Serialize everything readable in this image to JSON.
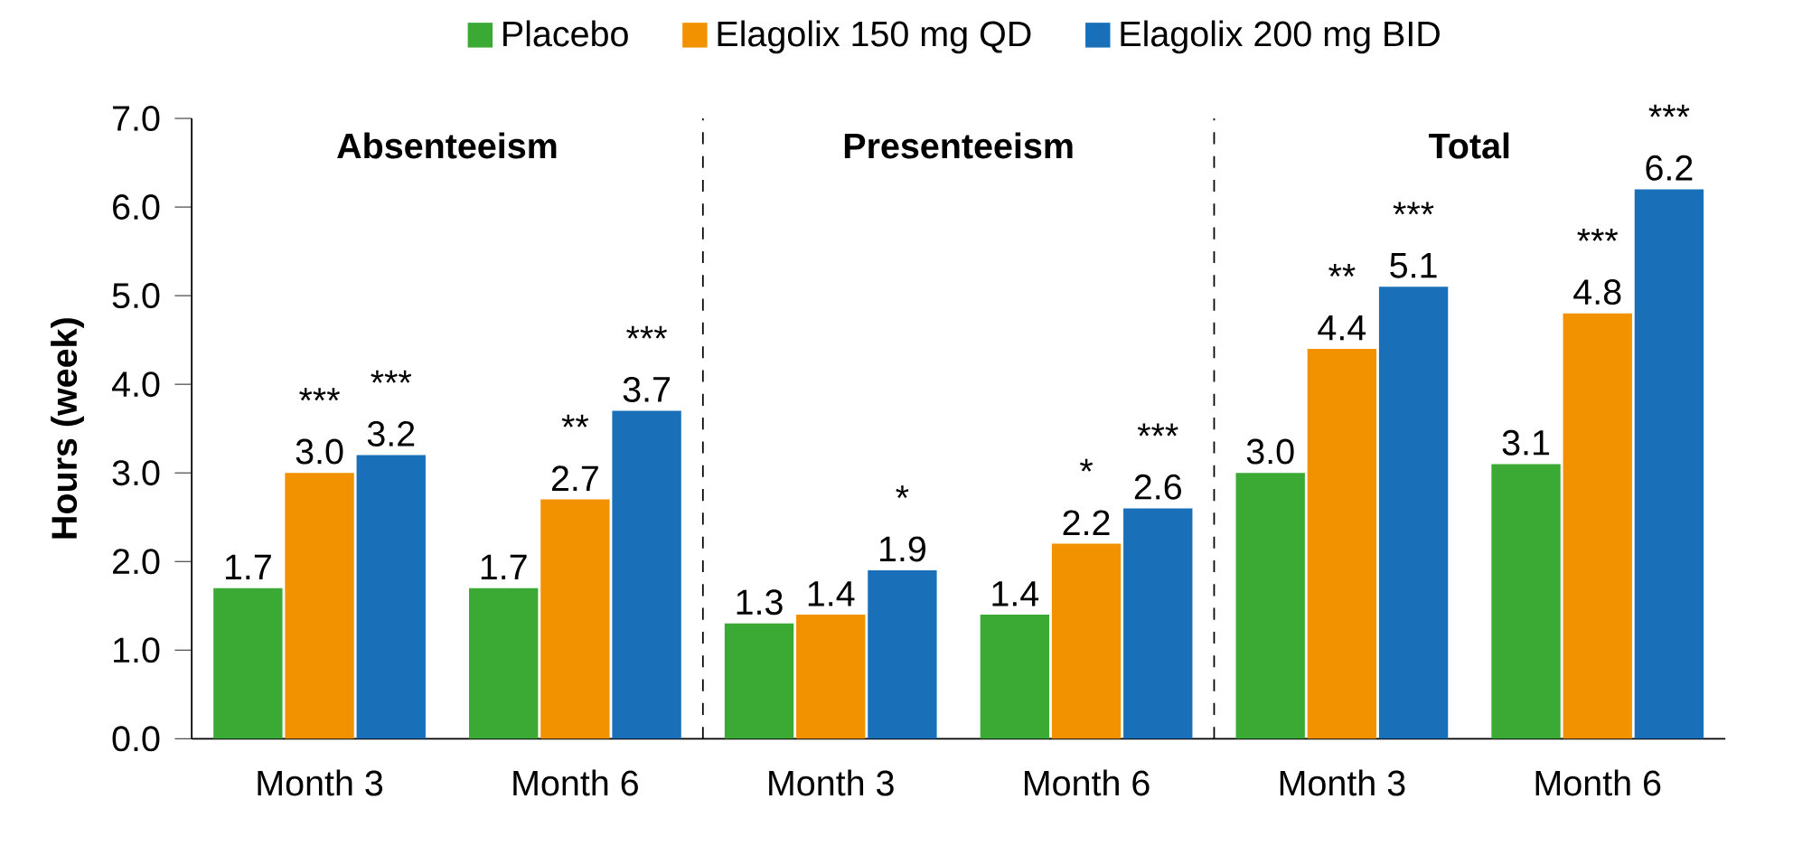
{
  "chart_data": {
    "type": "bar",
    "ylabel": "Hours (week)",
    "categories": [
      "Month 3",
      "Month 6",
      "Month 3",
      "Month 6",
      "Month 3",
      "Month 6"
    ],
    "series": [
      {
        "name": "Placebo",
        "color": "#3aaa35",
        "values": [
          1.7,
          1.7,
          1.3,
          1.4,
          3.0,
          3.1
        ],
        "value_labels": [
          "1.7",
          "1.7",
          "1.3",
          "1.4",
          "3.0",
          "3.1"
        ]
      },
      {
        "name": "Elagolix 150 mg QD",
        "color": "#f39200",
        "values": [
          3.0,
          2.7,
          1.4,
          2.2,
          4.4,
          4.8
        ],
        "value_labels": [
          "3.0",
          "2.7",
          "1.4",
          "2.2",
          "4.4",
          "4.8"
        ]
      },
      {
        "name": "Elagolix 200 mg BID",
        "color": "#1a70b8",
        "values": [
          3.2,
          3.7,
          1.9,
          2.6,
          5.1,
          6.2
        ],
        "value_labels": [
          "3.2",
          "3.7",
          "1.9",
          "2.6",
          "5.1",
          "6.2"
        ]
      }
    ],
    "ylim": [
      0,
      7
    ],
    "yticks": [
      {
        "value": 0,
        "label": "0.0"
      },
      {
        "value": 1,
        "label": "1.0"
      },
      {
        "value": 2,
        "label": "2.0"
      },
      {
        "value": 3,
        "label": "3.0"
      },
      {
        "value": 4,
        "label": "4.0"
      },
      {
        "value": 5,
        "label": "5.0"
      },
      {
        "value": 6,
        "label": "6.0"
      },
      {
        "value": 7,
        "label": "7.0"
      }
    ],
    "legend": "top",
    "grid": false,
    "annotations": [
      "Absenteeism",
      "Presenteeism",
      "Total",
      "***",
      "**",
      "*",
      "**",
      "***",
      "***",
      "***",
      "*",
      "***",
      "***",
      "***"
    ]
  }
}
